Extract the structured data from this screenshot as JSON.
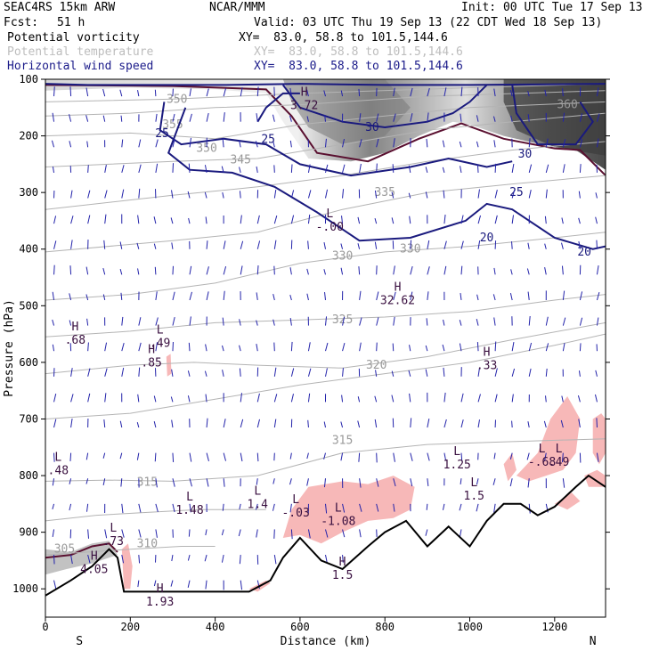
{
  "header": {
    "model": "SEAC4RS 15km ARW",
    "org": "NCAR/MMM",
    "init": "Init: 00 UTC Tue 17 Sep 13",
    "fcst_label": "Fcst:",
    "fcst_value": "51 h",
    "valid": "Valid: 03 UTC Thu 19 Sep 13 (22 CDT Wed 18 Sep 13)",
    "fields": [
      {
        "name": "Potential vorticity",
        "xy": "XY=  83.0, 58.8 to 101.5,144.6",
        "color": "#000000"
      },
      {
        "name": "Potential temperature",
        "xy": "XY=  83.0, 58.8 to 101.5,144.6",
        "color": "#bdbdbd"
      },
      {
        "name": "Horizontal wind speed",
        "xy": "XY=  83.0, 58.8 to 101.5,144.6",
        "color": "#1b1b8a"
      }
    ]
  },
  "colors": {
    "theta": "#b4b4b4",
    "wind": "#1a1a7e",
    "pv_contour": "#5a1030",
    "pv_fill_light": "#e8e8e8",
    "pv_fill_dark": "#3c3c3c",
    "rh_pink": "#f7b8b8",
    "terrain": "#000000",
    "vectors": "#2222aa"
  },
  "chart_data": {
    "type": "cross-section",
    "xlabel": "Distance (km)",
    "ylabel": "Pressure (hPa)",
    "xlim": [
      0,
      1320
    ],
    "ylim": [
      1050,
      100
    ],
    "x_ticks": [
      0,
      200,
      400,
      600,
      800,
      1000,
      1200
    ],
    "y_ticks": [
      100,
      200,
      300,
      400,
      500,
      600,
      700,
      800,
      900,
      1000
    ],
    "end_labels": {
      "left": "S",
      "right": "N"
    },
    "terrain_surface": [
      {
        "x": 0,
        "p": 1012
      },
      {
        "x": 60,
        "p": 985
      },
      {
        "x": 110,
        "p": 960
      },
      {
        "x": 150,
        "p": 930
      },
      {
        "x": 170,
        "p": 945
      },
      {
        "x": 185,
        "p": 1005
      },
      {
        "x": 200,
        "p": 1005
      },
      {
        "x": 300,
        "p": 1005
      },
      {
        "x": 400,
        "p": 1005
      },
      {
        "x": 480,
        "p": 1005
      },
      {
        "x": 530,
        "p": 985
      },
      {
        "x": 560,
        "p": 945
      },
      {
        "x": 600,
        "p": 910
      },
      {
        "x": 650,
        "p": 950
      },
      {
        "x": 700,
        "p": 965
      },
      {
        "x": 760,
        "p": 925
      },
      {
        "x": 800,
        "p": 900
      },
      {
        "x": 850,
        "p": 880
      },
      {
        "x": 900,
        "p": 925
      },
      {
        "x": 950,
        "p": 890
      },
      {
        "x": 1000,
        "p": 925
      },
      {
        "x": 1040,
        "p": 880
      },
      {
        "x": 1080,
        "p": 850
      },
      {
        "x": 1120,
        "p": 850
      },
      {
        "x": 1160,
        "p": 870
      },
      {
        "x": 1200,
        "p": 855
      },
      {
        "x": 1250,
        "p": 820
      },
      {
        "x": 1280,
        "p": 800
      },
      {
        "x": 1320,
        "p": 820
      }
    ],
    "theta_contours": [
      {
        "label": "305",
        "label_at": {
          "x": 45,
          "p": 930
        }
      },
      {
        "label": "310",
        "label_at": {
          "x": 240,
          "p": 920
        }
      },
      {
        "label": "315",
        "label_at": {
          "x": 240,
          "p": 812
        }
      },
      {
        "label": "315",
        "label_at": {
          "x": 700,
          "p": 738
        }
      },
      {
        "label": "320",
        "label_at": {
          "x": 780,
          "p": 605
        }
      },
      {
        "label": "325",
        "label_at": {
          "x": 700,
          "p": 525
        }
      },
      {
        "label": "330",
        "label_at": {
          "x": 700,
          "p": 412
        }
      },
      {
        "label": "330",
        "label_at": {
          "x": 860,
          "p": 400
        }
      },
      {
        "label": "335",
        "label_at": {
          "x": 800,
          "p": 300
        }
      },
      {
        "label": "345",
        "label_at": {
          "x": 460,
          "p": 242
        }
      },
      {
        "label": "350",
        "label_at": {
          "x": 380,
          "p": 222
        }
      },
      {
        "label": "350",
        "label_at": {
          "x": 310,
          "p": 135
        }
      },
      {
        "label": "355",
        "label_at": {
          "x": 300,
          "p": 180
        }
      },
      {
        "label": "360",
        "label_at": {
          "x": 1230,
          "p": 145
        }
      }
    ],
    "wind_speed_contours": [
      {
        "label": "20",
        "label_at": {
          "x": 1040,
          "p": 380
        }
      },
      {
        "label": "20",
        "label_at": {
          "x": 1270,
          "p": 405
        }
      },
      {
        "label": "25",
        "label_at": {
          "x": 275,
          "p": 196
        }
      },
      {
        "label": "25",
        "label_at": {
          "x": 525,
          "p": 206
        }
      },
      {
        "label": "25",
        "label_at": {
          "x": 1110,
          "p": 300
        }
      },
      {
        "label": "30",
        "label_at": {
          "x": 770,
          "p": 185
        }
      },
      {
        "label": "30",
        "label_at": {
          "x": 1130,
          "p": 232
        }
      }
    ],
    "extrema": [
      {
        "type": "H",
        "value": "3.72",
        "x": 610,
        "p": 135
      },
      {
        "type": "L",
        "value": "-.00",
        "x": 670,
        "p": 350
      },
      {
        "type": "H",
        "value": "32.62",
        "x": 830,
        "p": 480
      },
      {
        "type": "H",
        "value": ".68",
        "x": 70,
        "p": 550
      },
      {
        "type": "L",
        "value": ".49",
        "x": 270,
        "p": 555
      },
      {
        "type": "H",
        "value": ".85",
        "x": 250,
        "p": 590
      },
      {
        "type": "H",
        "value": ".33",
        "x": 1040,
        "p": 595
      },
      {
        "type": "L",
        "value": ".48",
        "x": 30,
        "p": 780
      },
      {
        "type": "L",
        "value": "1.25",
        "x": 970,
        "p": 770
      },
      {
        "type": "L",
        "value": "-.68",
        "x": 1170,
        "p": 765
      },
      {
        "type": "L",
        "value": ".49",
        "x": 1210,
        "p": 765
      },
      {
        "type": "L",
        "value": "1.48",
        "x": 340,
        "p": 850
      },
      {
        "type": "L",
        "value": "1.4",
        "x": 500,
        "p": 840
      },
      {
        "type": "L",
        "value": "-.03",
        "x": 590,
        "p": 855
      },
      {
        "type": "L",
        "value": "-1.08",
        "x": 690,
        "p": 870
      },
      {
        "type": "L",
        "value": "1.5",
        "x": 1010,
        "p": 825
      },
      {
        "type": "H",
        "value": "4.05",
        "x": 115,
        "p": 955
      },
      {
        "type": "L",
        "value": ".73",
        "x": 160,
        "p": 905
      },
      {
        "type": "H",
        "value": "1.5",
        "x": 700,
        "p": 965
      },
      {
        "type": "H",
        "value": "1.93",
        "x": 270,
        "p": 1012
      }
    ]
  }
}
